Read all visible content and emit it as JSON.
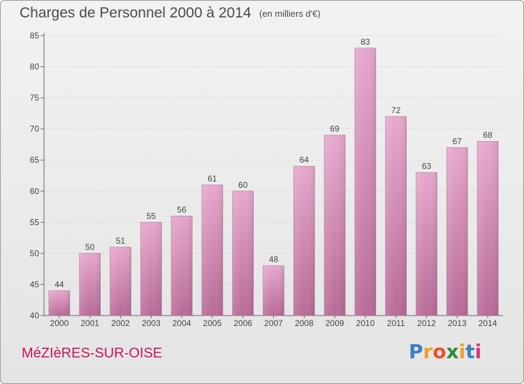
{
  "chart_data": {
    "type": "bar",
    "title": "Charges de Personnel 2000 à 2014",
    "subtitle": "(en milliers d'€)",
    "categories": [
      "2000",
      "2001",
      "2002",
      "2003",
      "2004",
      "2005",
      "2006",
      "2007",
      "2008",
      "2009",
      "2010",
      "2011",
      "2012",
      "2013",
      "2014"
    ],
    "values": [
      44,
      50,
      51,
      55,
      56,
      61,
      60,
      48,
      64,
      69,
      83,
      72,
      63,
      67,
      68
    ],
    "ylim": [
      40,
      85
    ],
    "yticks": [
      40,
      45,
      50,
      55,
      60,
      65,
      70,
      75,
      80,
      85
    ],
    "grid": true,
    "bar_color_top": "#e6a8cc",
    "bar_color_bottom": "#b86b97"
  },
  "footer": {
    "town": "MéZIèRES-SUR-OISE",
    "logo_letters": [
      "P",
      "r",
      "o",
      "x",
      "i",
      "t",
      "i"
    ],
    "logo_colors": [
      "#3a7fc4",
      "#f0a020",
      "#e8532a",
      "#2e8b3a",
      "#f0a020",
      "#3a7fc4",
      "#d83a7a"
    ]
  }
}
